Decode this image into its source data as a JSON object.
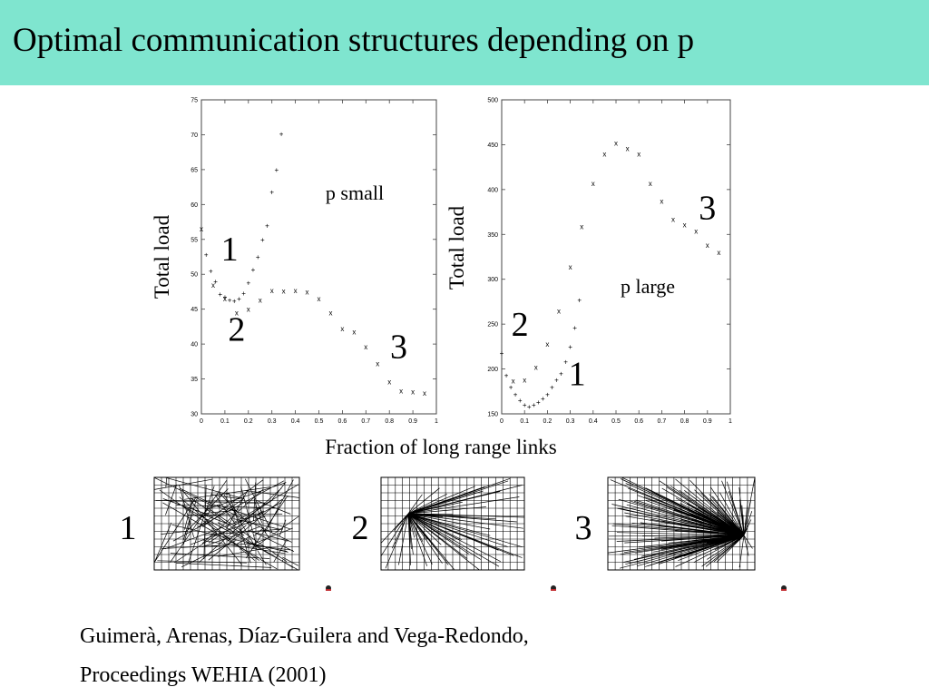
{
  "slide": {
    "title": "Optimal communication structures depending on p",
    "citation_line1": "Guimerà, Arenas, Díaz-Guilera and Vega-Redondo,",
    "citation_line2": "Proceedings WEHIA (2001)"
  },
  "colors": {
    "title_bar": "#7fe5cf",
    "ink": "#000000"
  },
  "shared_xlabel": "Fraction of long range links",
  "chart_data": [
    {
      "type": "scatter",
      "title": "",
      "annotation": "p small",
      "xlabel": "",
      "ylabel": "Total load",
      "xlim": [
        0,
        1
      ],
      "ylim": [
        30,
        75
      ],
      "xticks": [
        "0",
        "0.1",
        "0.2",
        "0.3",
        "0.4",
        "0.5",
        "0.6",
        "0.7",
        "0.8",
        "0.9",
        "1"
      ],
      "yticks": [
        "30",
        "35",
        "40",
        "45",
        "50",
        "55",
        "60",
        "65",
        "70",
        "75"
      ],
      "grid": false,
      "legend": "none",
      "regime_labels": [
        {
          "text": "1",
          "x": 0.12,
          "y": 52
        },
        {
          "text": "2",
          "x": 0.15,
          "y": 40.5
        },
        {
          "text": "3",
          "x": 0.84,
          "y": 38
        }
      ],
      "series": [
        {
          "marker": "+",
          "x": [
            0.02,
            0.04,
            0.06,
            0.08,
            0.1,
            0.12,
            0.14,
            0.16,
            0.18,
            0.2,
            0.22,
            0.24,
            0.26,
            0.28,
            0.3,
            0.32,
            0.34
          ],
          "y": [
            52.8,
            50.5,
            49.0,
            47.2,
            46.8,
            46.3,
            46.2,
            46.5,
            47.3,
            48.8,
            50.7,
            52.5,
            55.0,
            57.0,
            61.8,
            65.0,
            70.1
          ]
        },
        {
          "marker": "x",
          "x": [
            0.0,
            0.05,
            0.1,
            0.15,
            0.2,
            0.25,
            0.3,
            0.35,
            0.4,
            0.45,
            0.5,
            0.55,
            0.6,
            0.65,
            0.7,
            0.75,
            0.8,
            0.85,
            0.9,
            0.95
          ],
          "y": [
            56.5,
            48.5,
            46.5,
            44.5,
            45.0,
            46.3,
            47.7,
            47.6,
            47.7,
            47.5,
            46.5,
            44.5,
            42.2,
            41.8,
            39.6,
            37.2,
            34.6,
            33.3,
            33.2,
            33.0
          ]
        }
      ]
    },
    {
      "type": "scatter",
      "title": "",
      "annotation": "p large",
      "xlabel": "",
      "ylabel": "Total load",
      "xlim": [
        0,
        1
      ],
      "ylim": [
        150,
        500
      ],
      "xticks": [
        "0",
        "0.1",
        "0.2",
        "0.3",
        "0.4",
        "0.5",
        "0.6",
        "0.7",
        "0.8",
        "0.9",
        "1"
      ],
      "yticks": [
        "150",
        "200",
        "250",
        "300",
        "350",
        "400",
        "450",
        "500"
      ],
      "grid": false,
      "legend": "none",
      "regime_labels": [
        {
          "text": "3",
          "x": 0.9,
          "y": 367
        },
        {
          "text": "2",
          "x": 0.08,
          "y": 237
        },
        {
          "text": "1",
          "x": 0.33,
          "y": 182
        }
      ],
      "series": [
        {
          "marker": "+",
          "x": [
            0.0,
            0.02,
            0.04,
            0.06,
            0.08,
            0.1,
            0.12,
            0.14,
            0.16,
            0.18,
            0.2,
            0.22,
            0.24,
            0.26,
            0.28,
            0.3,
            0.32,
            0.34
          ],
          "y": [
            218,
            193,
            180,
            172,
            165,
            160,
            158,
            160,
            163,
            167,
            172,
            180,
            188,
            195,
            208,
            225,
            246,
            277
          ]
        },
        {
          "marker": "x",
          "x": [
            0.05,
            0.1,
            0.15,
            0.2,
            0.25,
            0.3,
            0.35,
            0.4,
            0.45,
            0.5,
            0.55,
            0.6,
            0.65,
            0.7,
            0.75,
            0.8,
            0.85,
            0.9,
            0.95
          ],
          "y": [
            187,
            188,
            202,
            228,
            265,
            314,
            359,
            407,
            440,
            452,
            446,
            440,
            407,
            387,
            367,
            361,
            354,
            338,
            330
          ]
        }
      ]
    }
  ],
  "network_panels": [
    {
      "label": "1",
      "kind": "random-long-range"
    },
    {
      "label": "2",
      "kind": "star-from-left-node"
    },
    {
      "label": "3",
      "kind": "star-from-right-node"
    }
  ]
}
